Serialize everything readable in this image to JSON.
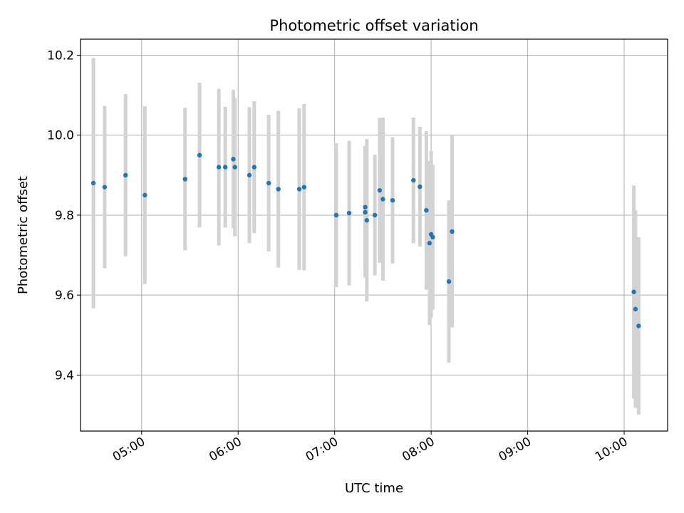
{
  "chart_data": {
    "type": "scatter",
    "title": "Photometric offset variation",
    "xlabel": "UTC time",
    "ylabel": "Photometric offset",
    "xlim": [
      "04:22",
      "10:27"
    ],
    "ylim": [
      9.26,
      10.24
    ],
    "xticks": [
      "05:00",
      "06:00",
      "07:00",
      "08:00",
      "09:00",
      "10:00"
    ],
    "yticks": [
      "9.4",
      "9.6",
      "9.8",
      "10.0",
      "10.2"
    ],
    "grid": true,
    "colors": {
      "marker": "#1f77b4",
      "errorbar": "#d3d3d3"
    },
    "points": [
      {
        "x": "04:30",
        "y": 9.88,
        "err": 0.313
      },
      {
        "x": "04:37",
        "y": 9.87,
        "err": 0.203
      },
      {
        "x": "04:50",
        "y": 9.9,
        "err": 0.203
      },
      {
        "x": "05:02",
        "y": 9.85,
        "err": 0.222
      },
      {
        "x": "05:27",
        "y": 9.89,
        "err": 0.178
      },
      {
        "x": "05:36",
        "y": 9.95,
        "err": 0.181
      },
      {
        "x": "05:48",
        "y": 9.92,
        "err": 0.196
      },
      {
        "x": "05:52",
        "y": 9.92,
        "err": 0.151
      },
      {
        "x": "05:57",
        "y": 9.94,
        "err": 0.173
      },
      {
        "x": "05:58",
        "y": 9.92,
        "err": 0.173
      },
      {
        "x": "06:07",
        "y": 9.9,
        "err": 0.17
      },
      {
        "x": "06:10",
        "y": 9.92,
        "err": 0.165
      },
      {
        "x": "06:19",
        "y": 9.88,
        "err": 0.171
      },
      {
        "x": "06:25",
        "y": 9.865,
        "err": 0.196
      },
      {
        "x": "06:38",
        "y": 9.865,
        "err": 0.202
      },
      {
        "x": "06:41",
        "y": 9.87,
        "err": 0.208
      },
      {
        "x": "07:01",
        "y": 9.8,
        "err": 0.18
      },
      {
        "x": "07:09",
        "y": 9.805,
        "err": 0.181
      },
      {
        "x": "07:19",
        "y": 9.82,
        "err": 0.153
      },
      {
        "x": "07:19",
        "y": 9.807,
        "err": 0.163
      },
      {
        "x": "07:20",
        "y": 9.787,
        "err": 0.203
      },
      {
        "x": "07:25",
        "y": 9.8,
        "err": 0.151
      },
      {
        "x": "07:28",
        "y": 9.862,
        "err": 0.181
      },
      {
        "x": "07:30",
        "y": 9.84,
        "err": 0.204
      },
      {
        "x": "07:36",
        "y": 9.837,
        "err": 0.158
      },
      {
        "x": "07:49",
        "y": 9.887,
        "err": 0.157
      },
      {
        "x": "07:53",
        "y": 9.871,
        "err": 0.15
      },
      {
        "x": "07:57",
        "y": 9.812,
        "err": 0.198
      },
      {
        "x": "07:59",
        "y": 9.73,
        "err": 0.205
      },
      {
        "x": "08:00",
        "y": 9.752,
        "err": 0.208
      },
      {
        "x": "08:01",
        "y": 9.745,
        "err": 0.181
      },
      {
        "x": "08:11",
        "y": 9.634,
        "err": 0.203
      },
      {
        "x": "08:13",
        "y": 9.759,
        "err": 0.24
      },
      {
        "x": "10:06",
        "y": 9.608,
        "err": 0.266
      },
      {
        "x": "10:07",
        "y": 9.565,
        "err": 0.247
      },
      {
        "x": "10:09",
        "y": 9.523,
        "err": 0.222
      }
    ]
  }
}
